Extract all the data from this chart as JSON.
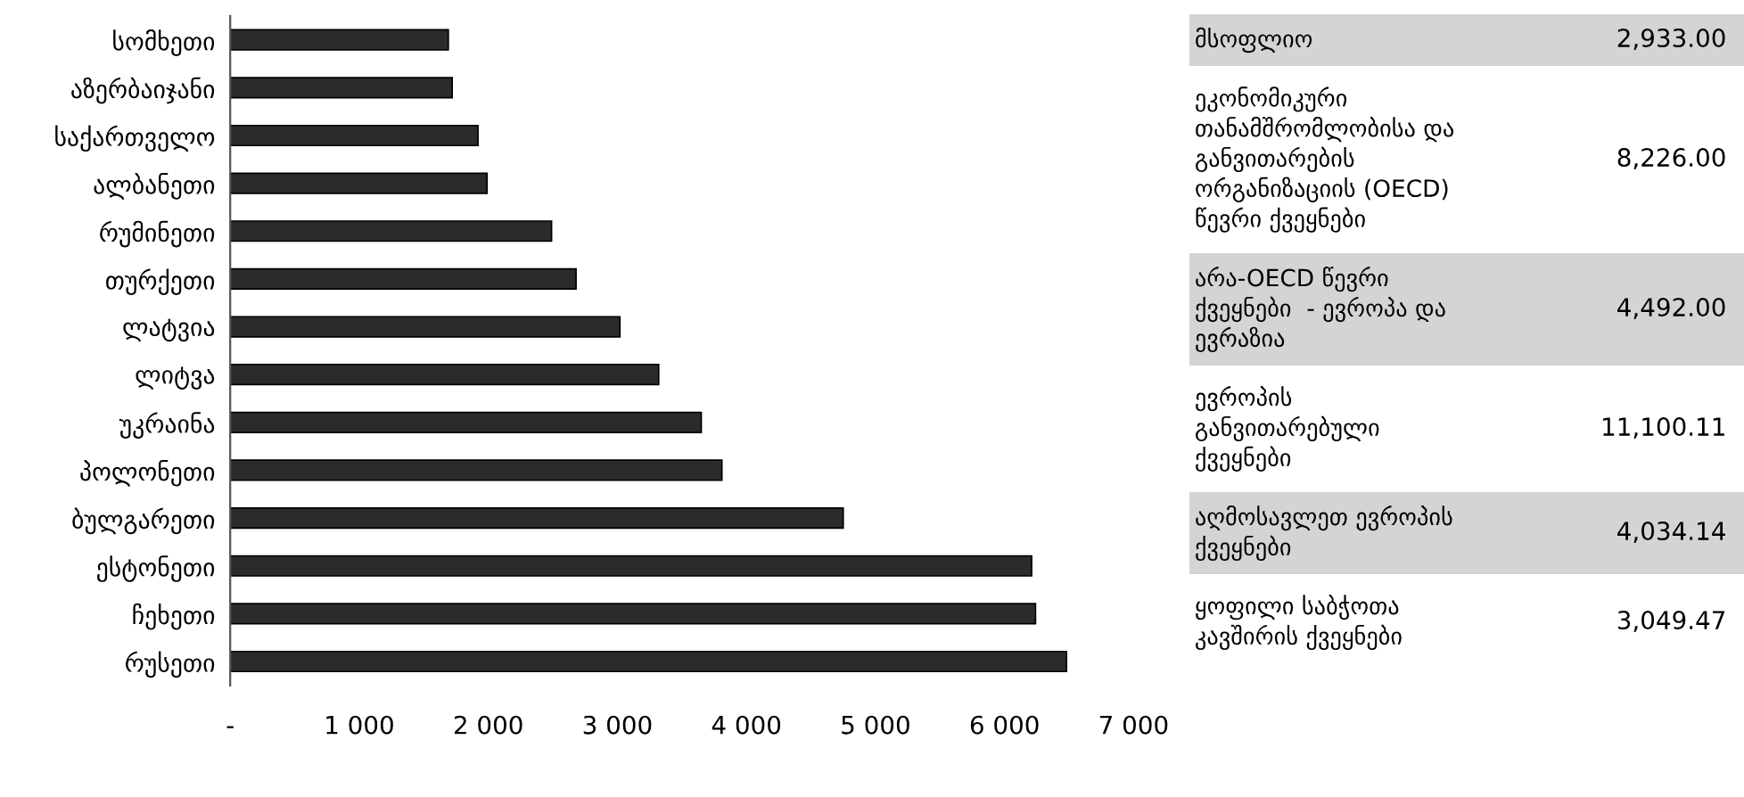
{
  "chart_data": {
    "type": "bar",
    "orientation": "horizontal",
    "categories": [
      "სომხეთი",
      "აზერბაიჯანი",
      "საქართველო",
      "ალბანეთი",
      "რუმინეთი",
      "თურქეთი",
      "ლატვია",
      "ლიტვა",
      "უკრაინა",
      "პოლონეთი",
      "ბულგარეთი",
      "ესტონეთი",
      "ჩეხეთი",
      "რუსეთი"
    ],
    "values": [
      1690,
      1720,
      1920,
      1990,
      2490,
      2680,
      3020,
      3320,
      3650,
      3810,
      4750,
      6210,
      6240,
      6480
    ],
    "color": "#2b2b2b",
    "xlim": [
      0,
      7000
    ],
    "xticks": [
      {
        "value": 0,
        "label": "-"
      },
      {
        "value": 1000,
        "label": "1 000"
      },
      {
        "value": 2000,
        "label": "2 000"
      },
      {
        "value": 3000,
        "label": "3 000"
      },
      {
        "value": 4000,
        "label": "4 000"
      },
      {
        "value": 5000,
        "label": "5 000"
      },
      {
        "value": 6000,
        "label": "6 000"
      },
      {
        "value": 7000,
        "label": "7 000"
      }
    ],
    "grid": false,
    "annotations": [
      "მსოფლიო",
      "2,933.00",
      "ეკონომიკური\nთანამშრომლობისა და\nგანვითარების\nორგანიზაციის (OECD)\nწევრი ქვეყნები",
      "8,226.00",
      "არა-OECD წევრი\nქვეყნები  - ევროპა და\nევრაზია",
      "4,492.00",
      "ევროპის\nგანვითარებული\nქვეყნები",
      "11,100.11",
      "აღმოსავლეთ ევროპის\nქვეყნები",
      "4,034.14",
      "ყოფილი საბჭოთა\nკავშირის ქვეყნები",
      "3,049.47"
    ]
  }
}
